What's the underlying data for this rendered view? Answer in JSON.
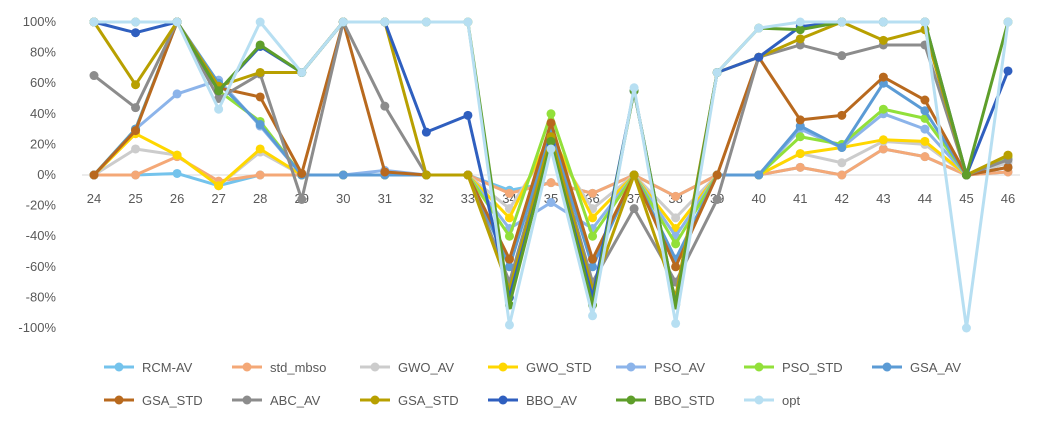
{
  "chart_data": {
    "type": "line",
    "title": "",
    "xlabel": "",
    "ylabel": "",
    "ylim": [
      -100,
      100
    ],
    "y_ticks": [
      100,
      80,
      60,
      40,
      20,
      0,
      -20,
      -40,
      -60,
      -80,
      -100
    ],
    "y_tick_labels": [
      "100%",
      "80%",
      "60%",
      "40%",
      "20%",
      "0%",
      "-20%",
      "-40%",
      "-60%",
      "-80%",
      "-100%"
    ],
    "grid": false,
    "legend_position": "bottom",
    "categories": [
      "24",
      "25",
      "26",
      "27",
      "28",
      "29",
      "30",
      "31",
      "32",
      "33",
      "34",
      "35",
      "36",
      "37",
      "38",
      "39",
      "40",
      "41",
      "42",
      "43",
      "44",
      "45",
      "46"
    ],
    "series": [
      {
        "name": "RCM-AV",
        "color": "#74c3ec",
        "values": [
          0,
          0,
          1,
          -7,
          0,
          0,
          0,
          0,
          0,
          0,
          -10,
          -5,
          -12,
          0,
          -14,
          0,
          0,
          5,
          0,
          17,
          12,
          0,
          2
        ]
      },
      {
        "name": "std_mbso",
        "color": "#f4a877",
        "values": [
          0,
          0,
          12,
          -4,
          0,
          0,
          0,
          0,
          0,
          0,
          -12,
          -5,
          -12,
          0,
          -14,
          0,
          0,
          5,
          0,
          17,
          12,
          0,
          2
        ]
      },
      {
        "name": "GWO_AV",
        "color": "#cccccc",
        "values": [
          0,
          17,
          13,
          -7,
          15,
          0,
          0,
          0,
          0,
          0,
          -22,
          20,
          -22,
          0,
          -28,
          0,
          0,
          14,
          8,
          22,
          20,
          0,
          8
        ]
      },
      {
        "name": "GWO_STD",
        "color": "#ffd700",
        "values": [
          0,
          27,
          13,
          -7,
          17,
          0,
          0,
          0,
          0,
          0,
          -28,
          27,
          -28,
          0,
          -35,
          0,
          0,
          14,
          18,
          23,
          22,
          0,
          11
        ]
      },
      {
        "name": "PSO_AV",
        "color": "#8cb4ea",
        "values": [
          0,
          30,
          53,
          62,
          32,
          0,
          0,
          3,
          0,
          0,
          -35,
          -18,
          -35,
          0,
          -40,
          0,
          0,
          30,
          18,
          40,
          30,
          0,
          10
        ]
      },
      {
        "name": "PSO_STD",
        "color": "#92e03a",
        "values": [
          0,
          30,
          100,
          55,
          35,
          0,
          0,
          0,
          0,
          0,
          -40,
          40,
          -40,
          0,
          -45,
          0,
          0,
          25,
          20,
          43,
          37,
          0,
          12
        ]
      },
      {
        "name": "GSA_AV",
        "color": "#5b9bd5",
        "values": [
          0,
          30,
          100,
          60,
          33,
          0,
          0,
          0,
          0,
          0,
          -60,
          28,
          -60,
          0,
          -55,
          0,
          0,
          32,
          18,
          60,
          42,
          0,
          5
        ]
      },
      {
        "name": "GSA_STD",
        "color": "#b8691e",
        "values": [
          0,
          29,
          100,
          57,
          51,
          1,
          100,
          2,
          0,
          0,
          -55,
          34,
          -55,
          0,
          -60,
          0,
          77,
          36,
          39,
          64,
          49,
          0,
          5
        ]
      },
      {
        "name": "ABC_AV",
        "color": "#8c8c8c",
        "values": [
          65,
          44,
          100,
          50,
          66,
          -16,
          100,
          45,
          0,
          0,
          -70,
          25,
          -70,
          -22,
          -70,
          -16,
          77,
          85,
          78,
          85,
          85,
          0,
          10
        ]
      },
      {
        "name": "GSA_STD",
        "color": "#b8a000",
        "values": [
          100,
          59,
          100,
          58,
          67,
          67,
          100,
          100,
          0,
          0,
          -75,
          25,
          -75,
          0,
          -80,
          67,
          77,
          89,
          100,
          88,
          95,
          0,
          13
        ]
      },
      {
        "name": "BBO_AV",
        "color": "#2f5fbf",
        "values": [
          100,
          93,
          100,
          55,
          84,
          67,
          100,
          100,
          28,
          39,
          -80,
          20,
          -80,
          55,
          -85,
          67,
          77,
          97,
          100,
          100,
          100,
          0,
          68
        ]
      },
      {
        "name": "BBO_STD",
        "color": "#5e9e2a",
        "values": [
          100,
          100,
          100,
          55,
          85,
          67,
          100,
          100,
          100,
          100,
          -85,
          22,
          -85,
          55,
          -85,
          67,
          96,
          95,
          100,
          100,
          100,
          0,
          100
        ]
      },
      {
        "name": "opt",
        "color": "#b7dff2",
        "values": [
          100,
          100,
          100,
          43,
          100,
          67,
          100,
          100,
          100,
          100,
          -98,
          17,
          -92,
          57,
          -97,
          67,
          96,
          100,
          100,
          100,
          100,
          -100,
          100
        ]
      }
    ]
  }
}
